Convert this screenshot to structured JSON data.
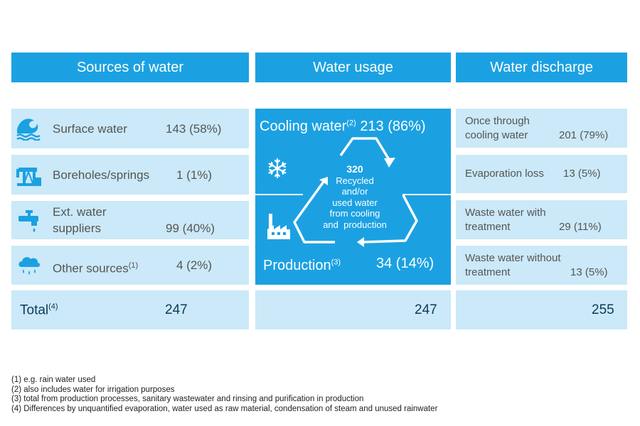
{
  "headers": {
    "sources": "Sources of water",
    "usage": "Water usage",
    "discharge": "Water discharge"
  },
  "sources": [
    {
      "label": "Surface water",
      "value": "143 (58%)",
      "icon": "wave-icon"
    },
    {
      "label": "Boreholes/springs",
      "value": "1 (1%)",
      "icon": "pump-icon"
    },
    {
      "label_line1": "Ext. water",
      "label_line2": "suppliers",
      "value": "99 (40%)",
      "icon": "tap-icon"
    },
    {
      "label": "Other sources",
      "sup": "(1)",
      "value": "4 (2%)",
      "icon": "rain-cloud-icon"
    }
  ],
  "usage": {
    "cooling_label": "Cooling water",
    "cooling_sup": "(2)",
    "cooling_value": "213 (86%)",
    "production_label": "Production",
    "production_sup": "(3)",
    "production_value": "34 (14%)",
    "recycled_value": "320",
    "recycled_lines": [
      "Recycled",
      "and/or",
      "used water",
      "from cooling",
      "and  production"
    ]
  },
  "discharge": [
    {
      "line1": "Once through",
      "line2": "cooling water",
      "value": "201 (79%)"
    },
    {
      "line1": "Evaporation loss",
      "value": "13 (5%)"
    },
    {
      "line1": "Waste water with",
      "line2": "treatment",
      "value": "29 (11%)"
    },
    {
      "line1": "Waste water without",
      "line2": "treatment",
      "value": "13 (5%)"
    }
  ],
  "totals": {
    "label": "Total",
    "sup": "(4)",
    "sources": "247",
    "usage": "247",
    "discharge": "255"
  },
  "footnotes": [
    "(1) e.g. rain water used",
    "(2) also includes water for irrigation purposes",
    "(3) total from production processes, sanitary wastewater and rinsing and purification in production",
    "(4) Differences by unquantified evaporation, water used as raw material, condensation of steam and unused rainwater"
  ],
  "colors": {
    "accent": "#1ba1e2",
    "light": "#cbe9f8",
    "total_text": "#0f3a5a"
  }
}
